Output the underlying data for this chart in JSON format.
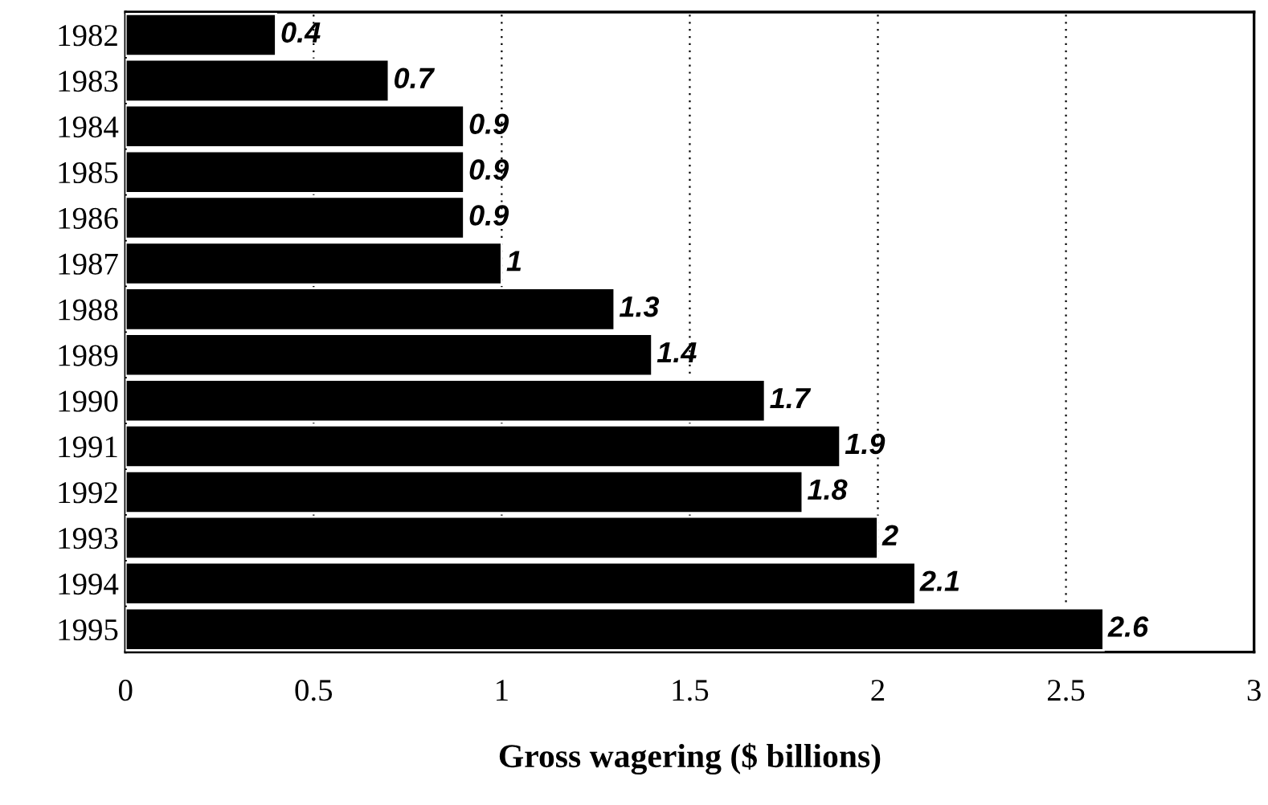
{
  "chart_data": {
    "type": "bar",
    "orientation": "horizontal",
    "xlabel": "Gross wagering ($ billions)",
    "categories": [
      "1982",
      "1983",
      "1984",
      "1985",
      "1986",
      "1987",
      "1988",
      "1989",
      "1990",
      "1991",
      "1992",
      "1993",
      "1994",
      "1995"
    ],
    "values": [
      0.4,
      0.7,
      0.9,
      0.9,
      0.9,
      1,
      1.3,
      1.4,
      1.7,
      1.9,
      1.8,
      2,
      2.1,
      2.6
    ],
    "color": "#000000",
    "data_labels": true,
    "xlim": [
      0,
      3
    ],
    "xticks": [
      0,
      0.5,
      1,
      1.5,
      2,
      2.5,
      3
    ],
    "grid": "x"
  }
}
